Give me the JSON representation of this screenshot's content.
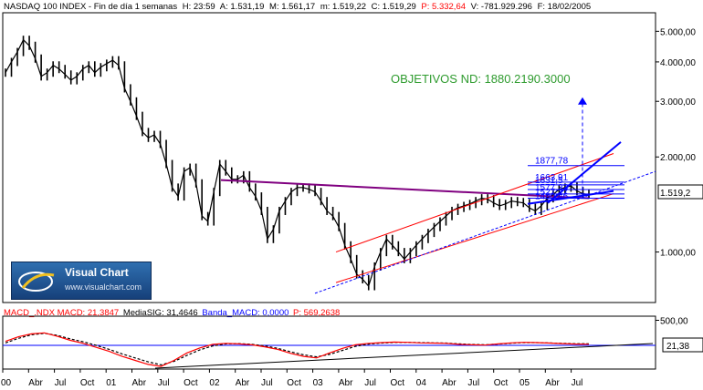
{
  "header": {
    "symbol": "NASDAQ 100 INDEX - Fin de día 1 semanas",
    "high": "H: 23:59",
    "a": "A: 1.531,19",
    "m": "M: 1.561,17",
    "min": "m: 1.519,22",
    "close": "C: 1.519,29",
    "p": "P: 5.332,64",
    "vol": "V: -781.929.296",
    "date": "F: 18/02/2005"
  },
  "indicator_header": {
    "macd": "MACD_.NDX  MACD: 21,3847",
    "signal": "MediaSIG: 31,4646",
    "band": "Banda_MACD: 0,0000",
    "p": "P: 569,2638"
  },
  "target_text": "OBJETIVOS ND: 1880.2190.3000",
  "logo": {
    "name": "Visual Chart",
    "url": "www.visualchart.com"
  },
  "last_price_label": "1.519,2",
  "macd_last_label": "21,38",
  "colors": {
    "price": "#000000",
    "channel": "#ff0000",
    "resistance": "#800080",
    "trend": "#0000ff",
    "target_text": "#2e9b2e",
    "macd": "#ff0000",
    "signal": "#000000"
  },
  "chart_data": [
    {
      "type": "line",
      "title": "NASDAQ 100 INDEX",
      "y_scale": "log",
      "yticks": [
        1000,
        2000,
        3000,
        4000,
        5000
      ],
      "ytick_labels": [
        "1.000,00",
        "2.000,00",
        "3.000,00",
        "4.000,00",
        "5.000,00"
      ],
      "x_tick_labels": [
        "00",
        "Abr",
        "Jul",
        "Oct",
        "01",
        "Abr",
        "Jul",
        "Oct",
        "02",
        "Abr",
        "Jul",
        "Oct",
        "03",
        "Abr",
        "Jul",
        "Oct",
        "04",
        "Abr",
        "Jul",
        "Oct",
        "05",
        "Abr",
        "Jul"
      ],
      "series": [
        {
          "values": [
            3700,
            4000,
            4300,
            4700,
            4500,
            4100,
            3600,
            3700,
            3900,
            3800,
            3650,
            3500,
            3600,
            3800,
            3900,
            3700,
            3850,
            3950,
            4050,
            3900,
            3300,
            3000,
            2700,
            2400,
            2300,
            2350,
            2200,
            1900,
            1600,
            1500,
            1800,
            1850,
            1650,
            1300,
            1250,
            1550,
            1900,
            1800,
            1700,
            1700,
            1750,
            1600,
            1500,
            1350,
            1100,
            1180,
            1350,
            1450,
            1550,
            1600,
            1600,
            1580,
            1550,
            1450,
            1350,
            1300,
            1200,
            1050,
            950,
            850,
            820,
            780,
            900,
            1000,
            1100,
            1050,
            1000,
            950,
            1000,
            1050,
            1100,
            1150,
            1200,
            1250,
            1300,
            1350,
            1380,
            1400,
            1420,
            1450,
            1480,
            1470,
            1430,
            1400,
            1420,
            1450,
            1440,
            1430,
            1380,
            1350,
            1400,
            1480,
            1520,
            1580,
            1600,
            1620,
            1560,
            1530,
            1519
          ]
        }
      ],
      "annotations": [
        "1877,78",
        "1663,91",
        "1631,5",
        "1577,33",
        "1527,27",
        "1480,46"
      ]
    },
    {
      "type": "line",
      "title": "MACD_.NDX",
      "yticks": [
        500
      ],
      "ytick_labels": [
        "500,00"
      ],
      "series": [
        {
          "name": "MACD",
          "values": [
            80,
            170,
            230,
            250,
            180,
            100,
            40,
            -40,
            -120,
            -220,
            -300,
            -380,
            -420,
            -300,
            -150,
            -50,
            20,
            40,
            30,
            10,
            -30,
            -80,
            -160,
            -220,
            -250,
            -150,
            -60,
            10,
            40,
            55,
            65,
            60,
            50,
            45,
            40,
            20,
            10,
            5,
            30,
            50,
            60,
            55,
            45,
            35,
            25,
            21
          ]
        },
        {
          "name": "MediaSIG",
          "values": [
            50,
            140,
            210,
            240,
            200,
            130,
            70,
            0,
            -80,
            -170,
            -250,
            -330,
            -390,
            -320,
            -200,
            -90,
            -10,
            30,
            35,
            20,
            -10,
            -60,
            -130,
            -190,
            -230,
            -180,
            -100,
            -20,
            25,
            45,
            58,
            60,
            55,
            50,
            45,
            30,
            18,
            10,
            25,
            42,
            55,
            55,
            48,
            40,
            33,
            31
          ]
        }
      ]
    }
  ]
}
